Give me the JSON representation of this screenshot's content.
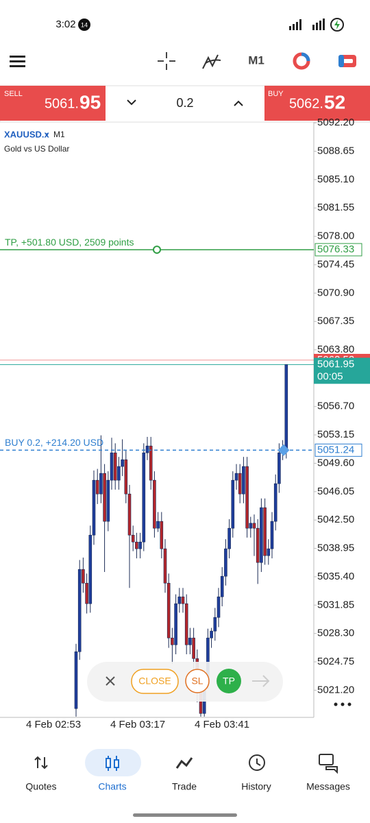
{
  "status_bar": {
    "time": "3:02",
    "badge": "14"
  },
  "toolbar": {
    "timeframe": "M1"
  },
  "trade_bar": {
    "sell_label": "SELL",
    "sell_price_main": "5061.",
    "sell_price_big": "95",
    "volume": "0.2",
    "buy_label": "BUY",
    "buy_price_main": "5062.",
    "buy_price_big": "52"
  },
  "chart_data": {
    "type": "candlestick",
    "symbol": "XAUUSD.x",
    "timeframe": "M1",
    "description": "Gold vs US Dollar",
    "bull_color": "#1f3e9c",
    "bear_color": "#b3262b",
    "open": [
      5018.9,
      5026.02,
      5036.32,
      5034.6,
      5032.03,
      5040.61,
      5047.48,
      5045.76,
      5048.34,
      5042.33,
      5047.48,
      5050.91,
      5047.48,
      5049.2,
      5050.05,
      5045.76,
      5040.61,
      5039.75,
      5038.9,
      5039.75,
      5050.91,
      5051.77,
      5047.48,
      5041.47,
      5042.33,
      5038.9,
      5034.6,
      5027.74,
      5026.88,
      5032.03,
      5032.89,
      5032.03,
      5026.88,
      5027.74,
      5025.16,
      5020.87,
      5018.29,
      5022.59,
      5027.74,
      5028.6,
      5030.31,
      5032.89,
      5035.46,
      5038.9,
      5041.47,
      5047.48,
      5048.34,
      5045.76,
      5049.2,
      5041.47,
      5042.1,
      5041.47,
      5037.18,
      5044.05,
      5038.04,
      5038.9,
      5042.33,
      5047.05,
      5050.91,
      5051.34
    ],
    "high": [
      5027.0,
      5037.5,
      5037.8,
      5035.8,
      5041.8,
      5048.7,
      5048.9,
      5053.1,
      5049.5,
      5048.6,
      5052.8,
      5052.1,
      5050.4,
      5052.6,
      5051.2,
      5046.9,
      5041.8,
      5040.9,
      5040.9,
      5052.1,
      5052.9,
      5052.9,
      5048.6,
      5043.5,
      5043.5,
      5040.1,
      5035.8,
      5029.0,
      5033.2,
      5034.0,
      5034.0,
      5033.2,
      5029.0,
      5029.0,
      5026.3,
      5022.0,
      5023.7,
      5028.9,
      5029.0,
      5031.5,
      5034.0,
      5036.6,
      5040.1,
      5042.6,
      5048.6,
      5049.5,
      5049.5,
      5050.4,
      5050.4,
      5042.9,
      5043.2,
      5042.6,
      5045.2,
      5045.2,
      5040.1,
      5043.5,
      5048.2,
      5052.1,
      5052.5,
      5061.95
    ],
    "low": [
      5017.9,
      5025.0,
      5033.4,
      5030.8,
      5030.9,
      5039.4,
      5044.5,
      5044.6,
      5036.0,
      5041.1,
      5046.3,
      5046.3,
      5046.3,
      5048.0,
      5044.6,
      5034.0,
      5038.6,
      5037.7,
      5037.7,
      5038.6,
      5050.0,
      5046.3,
      5040.3,
      5041.0,
      5037.7,
      5033.4,
      5026.5,
      5024.5,
      5025.7,
      5030.9,
      5030.9,
      5025.7,
      5025.7,
      5020.9,
      5019.7,
      5017.9,
      5017.9,
      5021.4,
      5026.5,
      5027.4,
      5029.1,
      5031.7,
      5034.3,
      5037.7,
      5040.3,
      5046.3,
      5044.6,
      5044.6,
      5040.3,
      5040.3,
      5038.0,
      5034.5,
      5036.0,
      5036.9,
      5036.9,
      5037.7,
      5041.2,
      5045.9,
      5050.0,
      5050.2
    ],
    "close": [
      5026.02,
      5036.32,
      5034.6,
      5032.03,
      5040.61,
      5047.48,
      5045.76,
      5048.34,
      5042.33,
      5047.48,
      5050.91,
      5047.48,
      5049.2,
      5050.05,
      5045.76,
      5040.61,
      5039.75,
      5038.9,
      5039.75,
      5050.91,
      5051.77,
      5047.48,
      5041.47,
      5042.33,
      5038.9,
      5034.6,
      5027.74,
      5026.88,
      5032.03,
      5032.89,
      5032.03,
      5026.88,
      5027.74,
      5025.16,
      5020.87,
      5018.29,
      5022.59,
      5027.74,
      5028.6,
      5030.31,
      5032.89,
      5035.46,
      5038.9,
      5041.47,
      5047.48,
      5048.34,
      5045.76,
      5049.2,
      5041.47,
      5042.1,
      5041.47,
      5037.18,
      5044.05,
      5038.04,
      5038.9,
      5042.33,
      5047.05,
      5050.91,
      5051.34,
      5061.95
    ],
    "ylim": [
      5017.8,
      5092.3
    ],
    "yticks": [
      {
        "value": 5092.2,
        "label": "5092.20"
      },
      5088.65,
      {
        "value": 5085.1,
        "label": "5085.10"
      },
      5081.55,
      {
        "value": 5078.0,
        "label": "5078.00"
      },
      5074.45,
      {
        "value": 5070.9,
        "label": "5070.90"
      },
      5067.35,
      {
        "value": 5063.8,
        "label": "5063.80"
      },
      {
        "value": 5056.7,
        "label": "5056.70"
      },
      5053.15,
      {
        "value": 5049.6,
        "label": "5049.60"
      },
      5046.05,
      {
        "value": 5042.5,
        "label": "5042.50"
      },
      5038.95,
      {
        "value": 5035.4,
        "label": "5035.40"
      },
      5031.85,
      {
        "value": 5028.3,
        "label": "5028.30"
      },
      5024.75,
      {
        "value": 5021.2,
        "label": "5021.20"
      }
    ],
    "x_labels": [
      "4 Feb 02:53",
      "4 Feb 03:17",
      "4 Feb 03:41"
    ],
    "levels": [
      {
        "label": "TP, +501.80 USD, 2509 points",
        "value": 5076.33,
        "color": "#2f9e44"
      },
      {
        "label": "BUY 0.2,  +214.20 USD",
        "value": 5051.24,
        "color": "#2f7fd0"
      }
    ],
    "ask": {
      "value": 5062.52,
      "color": "#e84c4c"
    },
    "bid": {
      "value": 5061.95,
      "timer": "00:05",
      "color": "#26a69a"
    }
  },
  "order_panel": {
    "close": "CLOSE",
    "sl": "SL",
    "tp": "TP"
  },
  "nav": {
    "items": [
      "Quotes",
      "Charts",
      "Trade",
      "History",
      "Messages"
    ]
  }
}
